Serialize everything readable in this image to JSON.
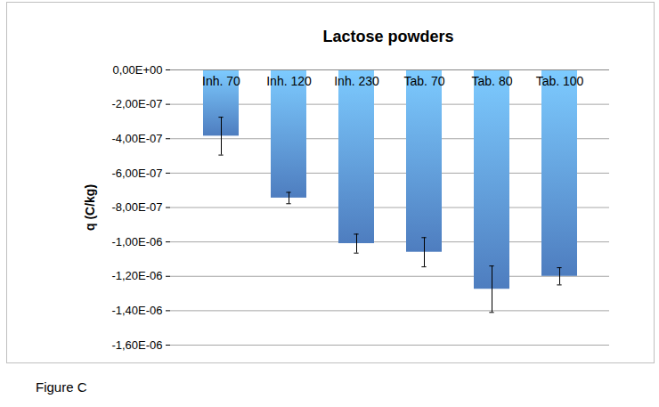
{
  "chart_data": {
    "type": "bar",
    "title": "Lactose powders",
    "y_label": "q (C/kg)",
    "categories": [
      "Inh. 70",
      "Inh. 120",
      "Inh. 230",
      "Tab. 70",
      "Tab. 80",
      "Tab. 100"
    ],
    "values": [
      -3.85e-07,
      -7.45e-07,
      -1.01e-06,
      -1.06e-06,
      -1.275e-06,
      -1.2e-06
    ],
    "error": [
      1.1e-07,
      3.3e-08,
      5.5e-08,
      8.5e-08,
      1.35e-07,
      5e-08
    ],
    "color": "#5b93e0",
    "ylim": [
      -1.6e-06,
      0
    ],
    "yticks": [
      {
        "value": 0,
        "label": "0,00E+00"
      },
      {
        "value": -2e-07,
        "label": "-2,00E-07"
      },
      {
        "value": -4e-07,
        "label": "-4,00E-07"
      },
      {
        "value": -6e-07,
        "label": "-6,00E-07"
      },
      {
        "value": -8e-07,
        "label": "-8,00E-07"
      },
      {
        "value": -1e-06,
        "label": "-1,00E-06"
      },
      {
        "value": -1.2e-06,
        "label": "-1,20E-06"
      },
      {
        "value": -1.4e-06,
        "label": "-1,40E-06"
      },
      {
        "value": -1.6e-06,
        "label": "-1,60E-06"
      }
    ],
    "grid": true,
    "caption": "Figure C"
  }
}
